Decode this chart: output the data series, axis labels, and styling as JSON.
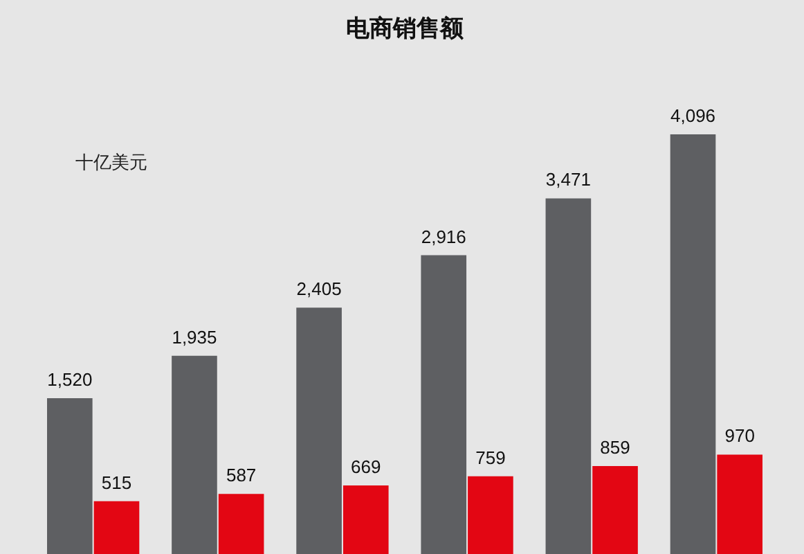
{
  "chart_data": {
    "type": "bar",
    "title": "电商销售额",
    "ylabel": "十亿美元",
    "categories": [
      null,
      null,
      null,
      null,
      null,
      null
    ],
    "series": [
      {
        "color": "#5e5f62",
        "values": [
          1520,
          1935,
          2405,
          2916,
          3471,
          4096
        ],
        "value_labels": [
          "1,520",
          "1,935",
          "2,405",
          "2,916",
          "3,471",
          "4,096"
        ]
      },
      {
        "color": "#e30613",
        "values": [
          515,
          587,
          669,
          759,
          859,
          970
        ],
        "value_labels": [
          "515",
          "587",
          "669",
          "759",
          "859",
          "970"
        ]
      }
    ],
    "grid": false,
    "legend": false
  }
}
